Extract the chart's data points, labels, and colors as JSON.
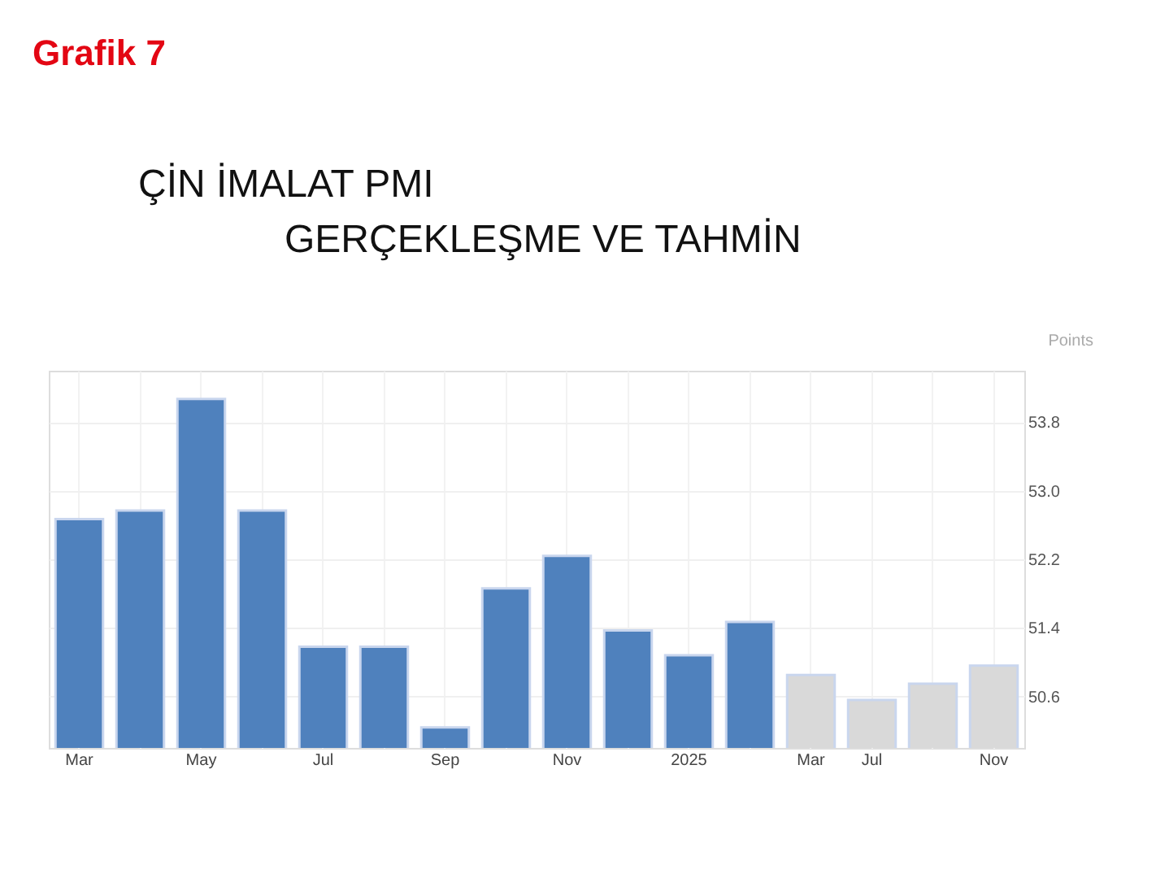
{
  "chart_data": {
    "type": "bar",
    "title": "ÇİN İMALAT PMI",
    "subtitle": "GERÇEKLEŞME VE TAHMİN",
    "ylabel": "Points",
    "annotations": [
      "Grafik 7"
    ],
    "categories": [
      "Mar",
      null,
      "May",
      null,
      "Jul",
      null,
      "Sep",
      null,
      "Nov",
      null,
      "2025",
      null,
      "Mar",
      "Jul",
      null,
      "Nov"
    ],
    "values": [
      52.67,
      52.77,
      54.07,
      52.77,
      51.18,
      51.18,
      50.24,
      51.86,
      52.24,
      51.37,
      51.08,
      51.47,
      50.85,
      50.56,
      50.75,
      50.96
    ],
    "colors": [
      "#4f81bd",
      "#4f81bd",
      "#4f81bd",
      "#4f81bd",
      "#4f81bd",
      "#4f81bd",
      "#4f81bd",
      "#4f81bd",
      "#4f81bd",
      "#4f81bd",
      "#4f81bd",
      "#4f81bd",
      "#d9d9d9",
      "#d9d9d9",
      "#d9d9d9",
      "#d9d9d9"
    ],
    "ylim": [
      50.0,
      54.4
    ],
    "yticks": [
      {
        "value": 50.6,
        "label": "50.6"
      },
      {
        "value": 51.4,
        "label": "51.4"
      },
      {
        "value": 52.2,
        "label": "52.2"
      },
      {
        "value": 53.0,
        "label": "53.0"
      },
      {
        "value": 53.8,
        "label": "53.8"
      }
    ],
    "grid": true,
    "legend": false
  }
}
